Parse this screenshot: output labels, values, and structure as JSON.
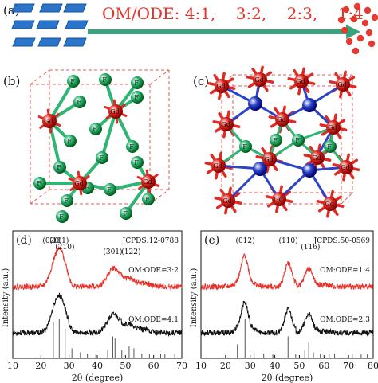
{
  "panel_a": {
    "letter": "(a)",
    "ratio_text": "OM/ODE: 4:1,    3:2,    2:3,    1:4",
    "colors": {
      "nanoplate": "#2a74c9",
      "arrow": "#3aa37e",
      "nanosphere": "#e53a30",
      "ratio_text": "#e8322a"
    }
  },
  "panel_b": {
    "letter": "(b)",
    "atom_labels": [
      "Gd",
      "F"
    ],
    "colors": {
      "gd": "#e02a22",
      "f": "#2fb574",
      "cell": "#e65a55"
    }
  },
  "panel_c": {
    "letter": "(c)",
    "atom_labels": [
      "Gd",
      "F"
    ],
    "colors": {
      "gd": "#e02a22",
      "f": "#2fb574",
      "other": "#2b44c9",
      "cell": "#e65a55"
    }
  },
  "chart_data": [
    {
      "panel": "(d)",
      "type": "line",
      "card": "JCPDS:12-0788",
      "xlabel": "2θ (degree)",
      "ylabel": "Intensity (a.u.)",
      "xlim": [
        10,
        70
      ],
      "xticks": [
        10,
        20,
        30,
        40,
        50,
        60,
        70
      ],
      "peak_labels": [
        {
          "label": "(020)",
          "x": 24.0
        },
        {
          "label": "(111)",
          "x": 26.5
        },
        {
          "label": "(210)",
          "x": 28.5
        },
        {
          "label": "(301)",
          "x": 45.5
        },
        {
          "label": "(122)",
          "x": 52.0
        }
      ],
      "series": [
        {
          "name": "OM:ODE=3:2",
          "color": "#e8322a",
          "peaks": [
            [
              24.5,
              0.55,
              1.6
            ],
            [
              26.6,
              0.75,
              1.4
            ],
            [
              28.6,
              0.45,
              1.3
            ],
            [
              45.8,
              0.55,
              2.2
            ],
            [
              51.5,
              0.22,
              2.2
            ],
            [
              57,
              0.08,
              2
            ]
          ]
        },
        {
          "name": "OM:ODE=4:1",
          "color": "#111111",
          "peaks": [
            [
              24.5,
              0.55,
              1.6
            ],
            [
              26.6,
              0.75,
              1.4
            ],
            [
              28.6,
              0.45,
              1.3
            ],
            [
              45.8,
              0.55,
              2.2
            ],
            [
              51.5,
              0.22,
              2.2
            ],
            [
              57,
              0.08,
              2
            ]
          ]
        }
      ],
      "reference_sticks": [
        [
          24.4,
          0.9
        ],
        [
          26.5,
          1.0
        ],
        [
          28.6,
          0.75
        ],
        [
          31.0,
          0.25
        ],
        [
          34.0,
          0.15
        ],
        [
          36.5,
          0.12
        ],
        [
          39.5,
          0.1
        ],
        [
          43.7,
          0.2
        ],
        [
          45.5,
          0.55
        ],
        [
          46.3,
          0.5
        ],
        [
          48.7,
          0.2
        ],
        [
          51.3,
          0.3
        ],
        [
          53.0,
          0.25
        ],
        [
          55.8,
          0.12
        ],
        [
          58.5,
          0.1
        ],
        [
          62.5,
          0.1
        ],
        [
          64.0,
          0.12
        ],
        [
          67.5,
          0.1
        ]
      ]
    },
    {
      "panel": "(e)",
      "type": "line",
      "card": "JCPDS:50-0569",
      "xlabel": "2θ (degree)",
      "ylabel": "Intensity (a.u.)",
      "xlim": [
        10,
        80
      ],
      "xticks": [
        10,
        20,
        30,
        40,
        50,
        60,
        70,
        80
      ],
      "peak_labels": [
        {
          "label": "(012)",
          "x": 28.0
        },
        {
          "label": "(110)",
          "x": 45.5
        },
        {
          "label": "(116)",
          "x": 54.5
        }
      ],
      "series": [
        {
          "name": "OM:ODE=1:4",
          "color": "#e8322a",
          "peaks": [
            [
              27.8,
              0.9,
              1.4
            ],
            [
              45.5,
              0.7,
              1.5
            ],
            [
              53.8,
              0.55,
              1.6
            ],
            [
              25.0,
              0.12,
              1.5
            ],
            [
              31.5,
              0.08,
              1.5
            ],
            [
              60,
              0.05,
              2
            ]
          ]
        },
        {
          "name": "OM:ODE=2:3",
          "color": "#111111",
          "peaks": [
            [
              27.8,
              0.9,
              1.4
            ],
            [
              45.5,
              0.7,
              1.5
            ],
            [
              53.8,
              0.55,
              1.6
            ],
            [
              25.0,
              0.12,
              1.5
            ],
            [
              31.5,
              0.08,
              1.5
            ],
            [
              60,
              0.05,
              2
            ]
          ]
        }
      ],
      "reference_sticks": [
        [
          24.8,
          0.35
        ],
        [
          27.9,
          1.0
        ],
        [
          31.6,
          0.15
        ],
        [
          35.5,
          0.12
        ],
        [
          39.2,
          0.1
        ],
        [
          44.2,
          0.15
        ],
        [
          45.4,
          0.55
        ],
        [
          48.5,
          0.12
        ],
        [
          52.2,
          0.2
        ],
        [
          53.8,
          0.4
        ],
        [
          55.7,
          0.15
        ],
        [
          58.5,
          0.1
        ],
        [
          62.1,
          0.1
        ],
        [
          64.3,
          0.12
        ],
        [
          68.5,
          0.1
        ],
        [
          71.5,
          0.1
        ],
        [
          75.1,
          0.1
        ],
        [
          77.6,
          0.1
        ]
      ]
    }
  ]
}
